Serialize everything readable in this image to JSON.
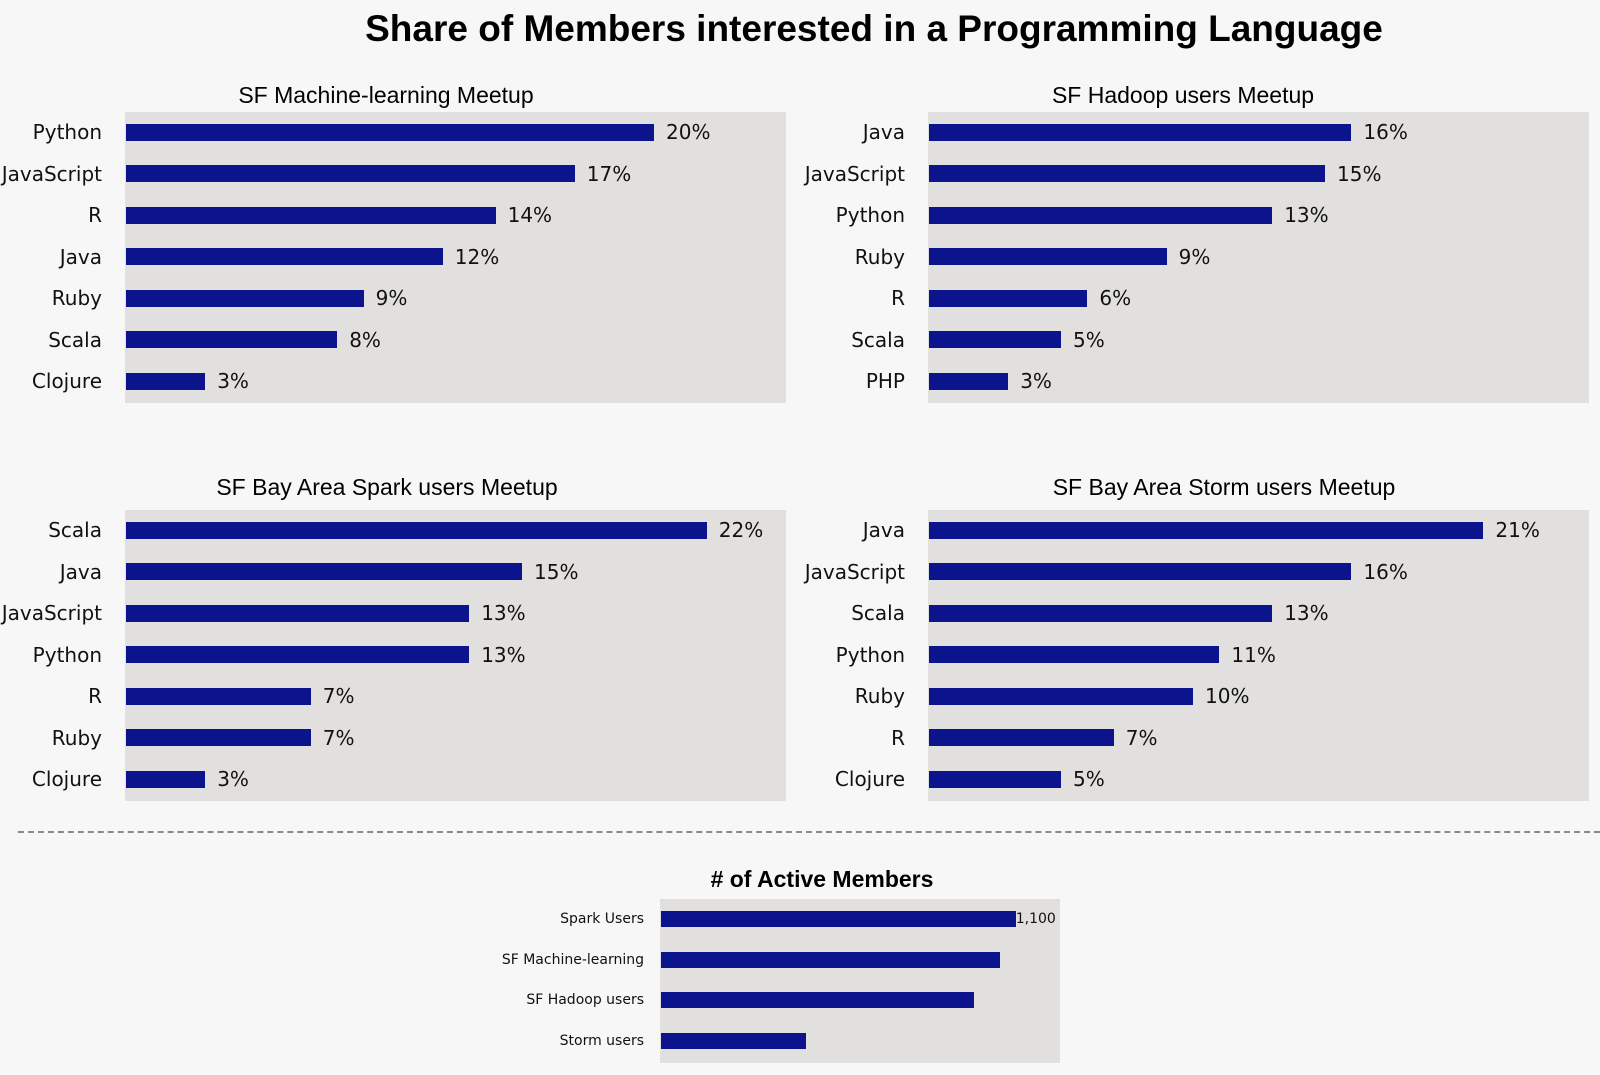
{
  "title": "Share of Members interested in a Programming Language",
  "colors": {
    "bar": "#0b148c",
    "plot_background": "#e2e0de",
    "page_background": "#f8f7f7"
  },
  "chart_data": [
    {
      "type": "bar",
      "orientation": "horizontal",
      "title": "SF Machine-learning Meetup",
      "categories": [
        "Python",
        "JavaScript",
        "R",
        "Java",
        "Ruby",
        "Scala",
        "Clojure"
      ],
      "values": [
        20,
        17,
        14,
        12,
        9,
        8,
        3
      ],
      "value_labels": [
        "20%",
        "17%",
        "14%",
        "12%",
        "9%",
        "8%",
        "3%"
      ],
      "unit": "%",
      "xlim": [
        0,
        25
      ],
      "grid": false
    },
    {
      "type": "bar",
      "orientation": "horizontal",
      "title": "SF Hadoop users Meetup",
      "categories": [
        "Java",
        "JavaScript",
        "Python",
        "Ruby",
        "R",
        "Scala",
        "PHP"
      ],
      "values": [
        16,
        15,
        13,
        9,
        6,
        5,
        3
      ],
      "value_labels": [
        "16%",
        "15%",
        "13%",
        "9%",
        "6%",
        "5%",
        "3%"
      ],
      "unit": "%",
      "xlim": [
        0,
        25
      ],
      "grid": false
    },
    {
      "type": "bar",
      "orientation": "horizontal",
      "title": "SF Bay Area Spark users Meetup",
      "categories": [
        "Scala",
        "Java",
        "JavaScript",
        "Python",
        "R",
        "Ruby",
        "Clojure"
      ],
      "values": [
        22,
        15,
        13,
        13,
        7,
        7,
        3
      ],
      "value_labels": [
        "22%",
        "15%",
        "13%",
        "13%",
        "7%",
        "7%",
        "3%"
      ],
      "unit": "%",
      "xlim": [
        0,
        25
      ],
      "grid": false
    },
    {
      "type": "bar",
      "orientation": "horizontal",
      "title": "SF Bay Area Storm users Meetup",
      "categories": [
        "Java",
        "JavaScript",
        "Scala",
        "Python",
        "Ruby",
        "R",
        "Clojure"
      ],
      "values": [
        21,
        16,
        13,
        11,
        10,
        7,
        5
      ],
      "value_labels": [
        "21%",
        "16%",
        "13%",
        "11%",
        "10%",
        "7%",
        "5%"
      ],
      "unit": "%",
      "xlim": [
        0,
        25
      ],
      "grid": false
    },
    {
      "type": "bar",
      "orientation": "horizontal",
      "title": "# of Active Members",
      "categories": [
        "Spark Users",
        "SF Machine-learning",
        "SF Hadoop users",
        "Storm users"
      ],
      "values": [
        1100,
        1050,
        970,
        450
      ],
      "value_labels": [
        "1,100",
        "",
        "",
        ""
      ],
      "xlim": [
        0,
        1185
      ],
      "grid": false
    }
  ]
}
